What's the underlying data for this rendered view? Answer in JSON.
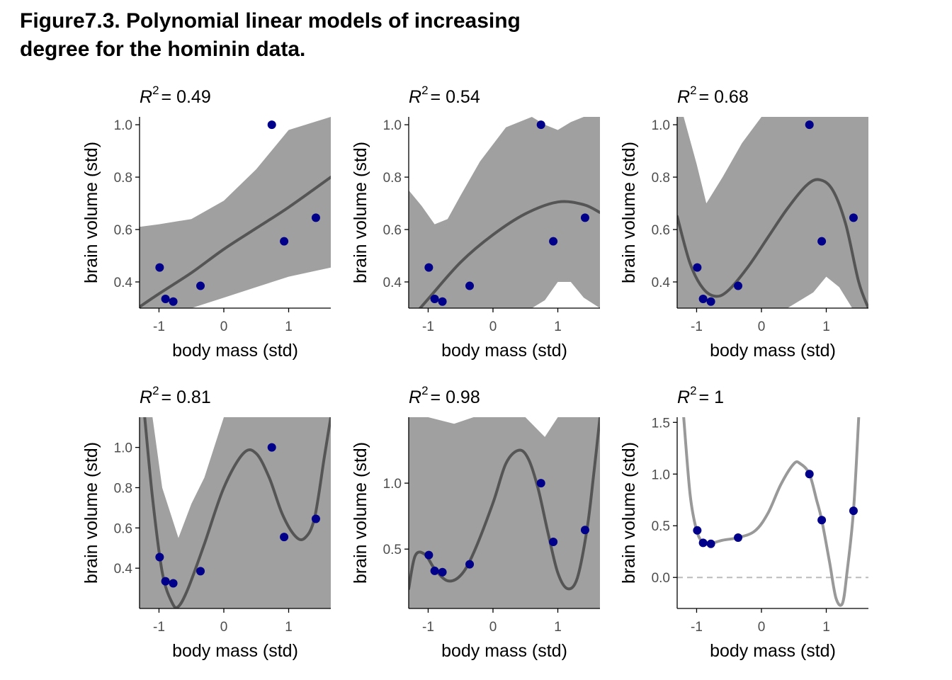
{
  "figure": {
    "title_line1": "Figure7.3. Polynomial linear models of increasing",
    "title_line2": "degree for the hominin data."
  },
  "colors": {
    "points": "#00008B",
    "band": "#A0A0A0",
    "fit_line": "#555555",
    "fit_line_light": "#999999",
    "zero_line": "#bbbbbb",
    "axis": "#000000",
    "tick_text": "#4d4d4d"
  },
  "points": {
    "x": [
      -0.99,
      -0.9,
      -0.78,
      -0.36,
      0.74,
      0.93,
      1.42
    ],
    "y": [
      0.455,
      0.335,
      0.325,
      0.385,
      1.0,
      0.555,
      0.645
    ]
  },
  "chart_data": [
    {
      "type": "scatter",
      "title_prefix": "R",
      "title_exp": "2",
      "title_eq": "= 0.49",
      "xlabel": "body mass (std)",
      "ylabel": "brain volume (std)",
      "xlim": [
        -1.3,
        1.65
      ],
      "ylim": [
        0.3,
        1.03
      ],
      "xticks": [
        -1,
        0,
        1
      ],
      "yticks": [
        0.4,
        0.6,
        0.8,
        1.0
      ],
      "ytick_labels": [
        "0.4",
        "0.6",
        "0.8",
        "1.0"
      ],
      "fit_line": {
        "x": [
          -1.3,
          -1.0,
          -0.5,
          0.0,
          0.5,
          1.0,
          1.65
        ],
        "y": [
          0.305,
          0.355,
          0.435,
          0.525,
          0.605,
          0.685,
          0.8
        ]
      },
      "band": {
        "x": [
          -1.3,
          -1.0,
          -0.5,
          0.0,
          0.5,
          1.0,
          1.65
        ],
        "upper": [
          0.61,
          0.62,
          0.64,
          0.71,
          0.83,
          0.98,
          1.03
        ],
        "lower": [
          0.3,
          0.3,
          0.3,
          0.34,
          0.38,
          0.42,
          0.455
        ]
      }
    },
    {
      "type": "scatter",
      "title_prefix": "R",
      "title_exp": "2",
      "title_eq": "= 0.54",
      "xlabel": "body mass (std)",
      "ylabel": "brain volume (std)",
      "xlim": [
        -1.3,
        1.65
      ],
      "ylim": [
        0.3,
        1.03
      ],
      "xticks": [
        -1,
        0,
        1
      ],
      "yticks": [
        0.4,
        0.6,
        0.8,
        1.0
      ],
      "ytick_labels": [
        "0.4",
        "0.6",
        "0.8",
        "1.0"
      ],
      "fit_line": {
        "x": [
          -1.3,
          -1.0,
          -0.5,
          0.0,
          0.5,
          1.0,
          1.4,
          1.65
        ],
        "y": [
          0.25,
          0.335,
          0.475,
          0.58,
          0.66,
          0.705,
          0.695,
          0.665
        ]
      },
      "band": {
        "x": [
          -1.3,
          -1.1,
          -0.9,
          -0.7,
          -0.5,
          -0.2,
          0.2,
          0.6,
          0.8,
          1.0,
          1.2,
          1.4,
          1.65
        ],
        "upper": [
          0.75,
          0.69,
          0.62,
          0.64,
          0.73,
          0.86,
          0.99,
          1.03,
          1.0,
          0.98,
          1.01,
          1.03,
          1.03
        ],
        "lower": [
          0.3,
          0.3,
          0.3,
          0.3,
          0.3,
          0.3,
          0.3,
          0.3,
          0.33,
          0.4,
          0.4,
          0.34,
          0.3
        ]
      }
    },
    {
      "type": "scatter",
      "title_prefix": "R",
      "title_exp": "2",
      "title_eq": "= 0.68",
      "xlabel": "body mass (std)",
      "ylabel": "brain volume (std)",
      "xlim": [
        -1.3,
        1.65
      ],
      "ylim": [
        0.3,
        1.03
      ],
      "xticks": [
        -1,
        0,
        1
      ],
      "yticks": [
        0.4,
        0.6,
        0.8,
        1.0
      ],
      "ytick_labels": [
        "0.4",
        "0.6",
        "0.8",
        "1.0"
      ],
      "fit_line": {
        "x": [
          -1.3,
          -1.1,
          -0.9,
          -0.7,
          -0.5,
          -0.2,
          0.1,
          0.4,
          0.7,
          0.9,
          1.1,
          1.3,
          1.5,
          1.65
        ],
        "y": [
          0.65,
          0.47,
          0.375,
          0.345,
          0.37,
          0.46,
          0.57,
          0.68,
          0.77,
          0.79,
          0.75,
          0.62,
          0.4,
          0.3
        ]
      },
      "band": {
        "x": [
          -1.3,
          -1.2,
          -1.0,
          -0.85,
          -0.6,
          -0.3,
          0.0,
          0.4,
          0.8,
          1.0,
          1.2,
          1.4,
          1.65
        ],
        "upper": [
          1.03,
          1.03,
          0.85,
          0.7,
          0.8,
          0.93,
          1.03,
          1.03,
          1.03,
          1.03,
          1.03,
          1.03,
          1.03
        ],
        "lower": [
          0.3,
          0.3,
          0.3,
          0.3,
          0.3,
          0.3,
          0.3,
          0.3,
          0.36,
          0.42,
          0.38,
          0.3,
          0.3
        ]
      }
    },
    {
      "type": "scatter",
      "title_prefix": "R",
      "title_exp": "2",
      "title_eq": "= 0.81",
      "xlabel": "body mass (std)",
      "ylabel": "brain volume (std)",
      "xlim": [
        -1.3,
        1.65
      ],
      "ylim": [
        0.2,
        1.15
      ],
      "xticks": [
        -1,
        0,
        1
      ],
      "yticks": [
        0.4,
        0.6,
        0.8,
        1.0
      ],
      "ytick_labels": [
        "0.4",
        "0.6",
        "0.8",
        "1.0"
      ],
      "fit_line": {
        "x": [
          -1.22,
          -1.1,
          -0.95,
          -0.8,
          -0.7,
          -0.55,
          -0.3,
          0.0,
          0.3,
          0.5,
          0.7,
          0.9,
          1.1,
          1.25,
          1.4,
          1.55,
          1.65
        ],
        "y": [
          1.15,
          0.75,
          0.38,
          0.23,
          0.21,
          0.3,
          0.52,
          0.8,
          0.97,
          0.97,
          0.85,
          0.67,
          0.56,
          0.55,
          0.65,
          0.95,
          1.15
        ]
      },
      "band": {
        "x": [
          -1.3,
          -1.1,
          -0.95,
          -0.7,
          -0.5,
          -0.3,
          0.0,
          0.3,
          0.6,
          0.9,
          1.1,
          1.3,
          1.5,
          1.65
        ],
        "upper": [
          1.15,
          1.15,
          0.8,
          0.55,
          0.72,
          0.85,
          1.15,
          1.15,
          1.15,
          1.15,
          1.15,
          1.15,
          1.15,
          1.15
        ],
        "lower": [
          0.2,
          0.2,
          0.2,
          0.2,
          0.2,
          0.2,
          0.2,
          0.2,
          0.2,
          0.2,
          0.2,
          0.2,
          0.2,
          0.2
        ]
      }
    },
    {
      "type": "scatter",
      "title_prefix": "R",
      "title_exp": "2",
      "title_eq": "= 0.98",
      "xlabel": "body mass (std)",
      "ylabel": "brain volume (std)",
      "xlim": [
        -1.3,
        1.65
      ],
      "ylim": [
        0.05,
        1.5
      ],
      "xticks": [
        -1,
        0,
        1
      ],
      "yticks": [
        0.5,
        1.0
      ],
      "ytick_labels": [
        "0.5",
        "1.0"
      ],
      "fit_line": {
        "x": [
          -1.3,
          -1.2,
          -1.05,
          -0.9,
          -0.7,
          -0.5,
          -0.3,
          0.0,
          0.2,
          0.4,
          0.55,
          0.7,
          0.85,
          1.0,
          1.15,
          1.3,
          1.45,
          1.55,
          1.65
        ],
        "y": [
          0.2,
          0.45,
          0.46,
          0.35,
          0.26,
          0.3,
          0.47,
          0.85,
          1.15,
          1.25,
          1.18,
          0.95,
          0.62,
          0.32,
          0.2,
          0.28,
          0.65,
          1.05,
          1.5
        ]
      },
      "band": {
        "x": [
          -1.3,
          -1.0,
          -0.6,
          -0.3,
          0.0,
          0.2,
          0.5,
          0.8,
          1.0,
          1.2,
          1.5,
          1.65
        ],
        "upper": [
          1.5,
          1.5,
          1.45,
          1.5,
          1.5,
          1.5,
          1.5,
          1.35,
          1.5,
          1.5,
          1.5,
          1.5
        ],
        "lower": [
          0.05,
          0.05,
          0.05,
          0.05,
          0.05,
          0.05,
          0.05,
          0.05,
          0.05,
          0.05,
          0.05,
          0.05
        ]
      }
    },
    {
      "type": "scatter",
      "title_prefix": "R",
      "title_exp": "2",
      "title_eq": "= 1",
      "xlabel": "body mass (std)",
      "ylabel": "brain volume (std)",
      "xlim": [
        -1.3,
        1.65
      ],
      "ylim": [
        -0.3,
        1.55
      ],
      "xticks": [
        -1,
        0,
        1
      ],
      "yticks": [
        0.0,
        0.5,
        1.0,
        1.5
      ],
      "ytick_labels": [
        "0.0",
        "0.5",
        "1.0",
        "1.5"
      ],
      "zero_line": 0,
      "fit_line": {
        "x": [
          -1.2,
          -1.1,
          -1.0,
          -0.9,
          -0.8,
          -0.6,
          -0.36,
          -0.1,
          0.1,
          0.3,
          0.5,
          0.6,
          0.74,
          0.85,
          0.93,
          1.05,
          1.15,
          1.25,
          1.32,
          1.42,
          1.5
        ],
        "y": [
          1.55,
          0.8,
          0.455,
          0.335,
          0.325,
          0.36,
          0.385,
          0.45,
          0.62,
          0.9,
          1.1,
          1.1,
          1.0,
          0.75,
          0.555,
          0.15,
          -0.2,
          -0.25,
          0.05,
          0.645,
          1.55
        ]
      }
    }
  ]
}
